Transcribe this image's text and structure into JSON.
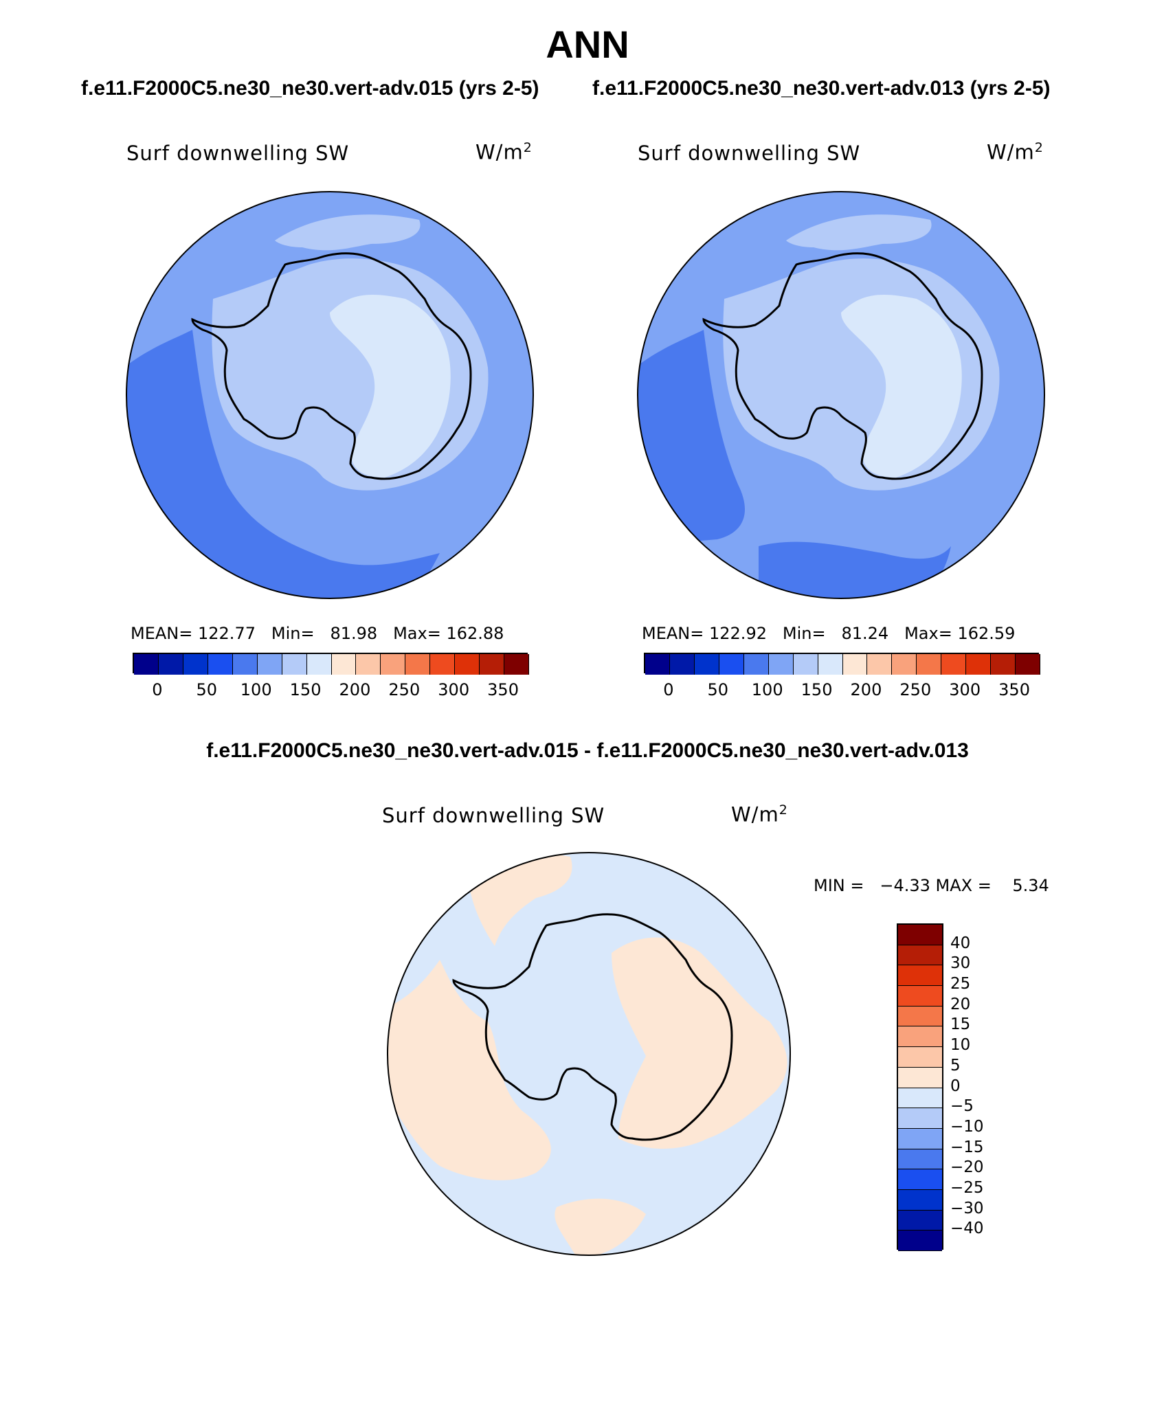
{
  "title": "ANN",
  "panels": [
    {
      "case_title": "f.e11.F2000C5.ne30_ne30.vert-adv.015 (yrs 2-5)",
      "variable": "Surf downwelling SW",
      "units": "W/m",
      "units_exp": "2",
      "stats": {
        "mean_label": "MEAN=",
        "mean": "122.77",
        "min_label": "Min=",
        "min": "81.98",
        "max_label": "Max=",
        "max": "162.88"
      }
    },
    {
      "case_title": "f.e11.F2000C5.ne30_ne30.vert-adv.013 (yrs 2-5)",
      "variable": "Surf downwelling SW",
      "units": "W/m",
      "units_exp": "2",
      "stats": {
        "mean_label": "MEAN=",
        "mean": "122.92",
        "min_label": "Min=",
        "min": "81.24",
        "max_label": "Max=",
        "max": "162.59"
      }
    }
  ],
  "colorbar": {
    "colors": [
      "#00008b",
      "#0019a8",
      "#0033cc",
      "#1a4ff0",
      "#4a79ee",
      "#7fa5f5",
      "#b4cbf8",
      "#d9e8fb",
      "#fde7d5",
      "#fcc7a9",
      "#f9a27c",
      "#f47749",
      "#ee4b1f",
      "#de3108",
      "#b51e06",
      "#7e0000"
    ],
    "ticks": [
      "0",
      "50",
      "100",
      "150",
      "200",
      "250",
      "300",
      "350"
    ]
  },
  "difference": {
    "title": "f.e11.F2000C5.ne30_ne30.vert-adv.015 - f.e11.F2000C5.ne30_ne30.vert-adv.013",
    "variable": "Surf downwelling SW",
    "units": "W/m",
    "units_exp": "2",
    "minmax": "MIN =   −4.33 MAX =    5.34",
    "colorbar": {
      "colors": [
        "#7e0000",
        "#b51e06",
        "#de3108",
        "#ee4b1f",
        "#f47749",
        "#f9a27c",
        "#fcc7a9",
        "#fde7d5",
        "#d9e8fb",
        "#b4cbf8",
        "#7fa5f5",
        "#4a79ee",
        "#1a4ff0",
        "#0033cc",
        "#0019a8",
        "#00008b"
      ],
      "ticks": [
        "40",
        "30",
        "25",
        "20",
        "15",
        "10",
        "5",
        "0",
        "−5",
        "−10",
        "−15",
        "−20",
        "−25",
        "−30",
        "−40"
      ]
    }
  }
}
